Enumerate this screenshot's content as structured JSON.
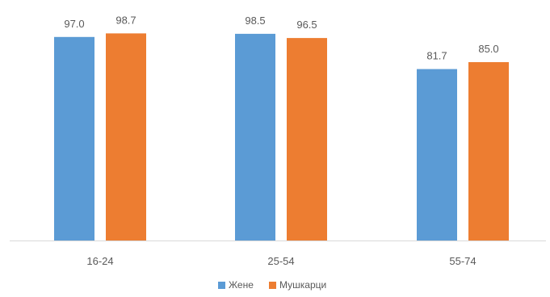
{
  "chart_data": {
    "type": "bar",
    "categories": [
      "16-24",
      "25-54",
      "55-74"
    ],
    "series": [
      {
        "name": "Жене",
        "color": "#5B9BD5",
        "values": [
          97.0,
          98.5,
          81.7
        ],
        "labels": [
          "97.0",
          "98.5",
          "81.7"
        ]
      },
      {
        "name": "Мушкарци",
        "color": "#ED7D31",
        "values": [
          98.7,
          96.5,
          85.0
        ],
        "labels": [
          "98.7",
          "96.5",
          "85.0"
        ]
      }
    ],
    "ylim": [
      0,
      100
    ],
    "grid": false,
    "legend_position": "bottom",
    "axis_color": "#d9d9d9"
  }
}
